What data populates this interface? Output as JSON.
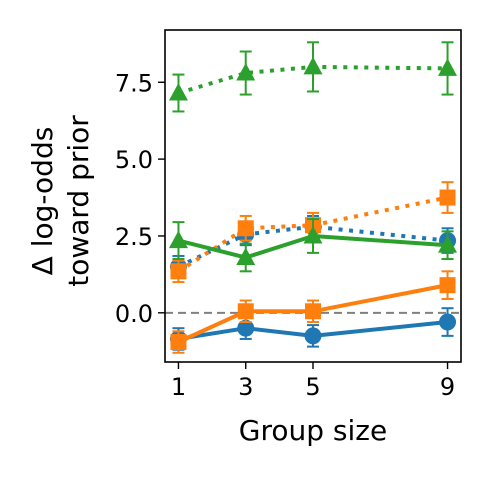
{
  "chart_data": {
    "type": "line",
    "xlabel": "Group size",
    "ylabel_lines": [
      "Δ log-odds",
      "toward prior"
    ],
    "x_ticks": [
      1,
      3,
      5,
      9
    ],
    "x_tick_labels": [
      "1",
      "3",
      "5",
      "9"
    ],
    "y_ticks": [
      0.0,
      2.5,
      5.0,
      7.5
    ],
    "y_tick_labels": [
      "0.0",
      "2.5",
      "5.0",
      "7.5"
    ],
    "xlim": [
      0.6,
      9.4
    ],
    "ylim": [
      -1.6,
      9.2
    ],
    "reference_line": {
      "y": 0.0,
      "style": "dashed",
      "color": "#808080"
    },
    "grid": false,
    "legend": "none",
    "series": [
      {
        "color": "#1f77b4",
        "marker": "circle",
        "linestyle": "solid",
        "x": [
          1,
          3,
          5,
          9
        ],
        "y": [
          -0.85,
          -0.5,
          -0.75,
          -0.3
        ],
        "err": [
          0.35,
          0.35,
          0.35,
          0.45
        ]
      },
      {
        "color": "#1f77b4",
        "marker": "circle",
        "linestyle": "dotted",
        "x": [
          1,
          3,
          5,
          9
        ],
        "y": [
          1.5,
          2.55,
          2.8,
          2.35
        ],
        "err": [
          0.35,
          0.35,
          0.35,
          0.4
        ]
      },
      {
        "color": "#ff7f0e",
        "marker": "square",
        "linestyle": "solid",
        "x": [
          1,
          3,
          5,
          9
        ],
        "y": [
          -0.95,
          0.05,
          0.05,
          0.9
        ],
        "err": [
          0.35,
          0.35,
          0.35,
          0.45
        ]
      },
      {
        "color": "#ff7f0e",
        "marker": "square",
        "linestyle": "dotted",
        "x": [
          1,
          3,
          5,
          9
        ],
        "y": [
          1.35,
          2.75,
          2.85,
          3.75
        ],
        "err": [
          0.35,
          0.4,
          0.4,
          0.5
        ]
      },
      {
        "color": "#2ca02c",
        "marker": "triangle",
        "linestyle": "solid",
        "x": [
          1,
          3,
          5,
          9
        ],
        "y": [
          2.35,
          1.8,
          2.5,
          2.2
        ],
        "err": [
          0.6,
          0.45,
          0.55,
          0.45
        ]
      },
      {
        "color": "#2ca02c",
        "marker": "triangle",
        "linestyle": "dotted",
        "x": [
          1,
          3,
          5,
          9
        ],
        "y": [
          7.15,
          7.8,
          8.0,
          7.95
        ],
        "err": [
          0.6,
          0.7,
          0.8,
          0.85
        ]
      }
    ]
  }
}
